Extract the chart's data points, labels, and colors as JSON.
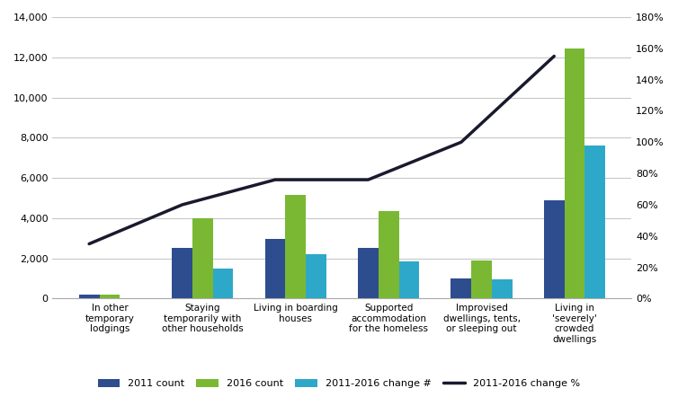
{
  "categories": [
    "In other\ntemporary\nlodgings",
    "Staying\ntemporarily with\nother households",
    "Living in boarding\nhouses",
    "Supported\naccommodation\nfor the homeless",
    "Improvised\ndwellings, tents,\nor sleeping out",
    "Living in\n'severely'\ncrowded\ndwellings"
  ],
  "count_2011": [
    200,
    2500,
    2950,
    2500,
    1000,
    4900
  ],
  "count_2016": [
    200,
    4000,
    5150,
    4350,
    1900,
    12450
  ],
  "change_num": [
    0,
    1500,
    2200,
    1850,
    950,
    7600
  ],
  "change_pct": [
    0.35,
    0.6,
    0.76,
    0.76,
    1.0,
    1.55
  ],
  "bar_color_2011": "#2E4D8F",
  "bar_color_2016": "#7AB833",
  "bar_color_change": "#2EA8C8",
  "line_color": "#1A1A2E",
  "ylim_left": [
    0,
    14000
  ],
  "ylim_right": [
    0,
    1.8
  ],
  "yticks_left": [
    0,
    2000,
    4000,
    6000,
    8000,
    10000,
    12000,
    14000
  ],
  "yticks_right": [
    0.0,
    0.2,
    0.4,
    0.6,
    0.8,
    1.0,
    1.2,
    1.4,
    1.6,
    1.8
  ],
  "legend_labels": [
    "2011 count",
    "2016 count",
    "2011-2016 change #",
    "2011-2016 change %"
  ],
  "background_color": "#FFFFFF",
  "grid_color": "#C8C8C8"
}
